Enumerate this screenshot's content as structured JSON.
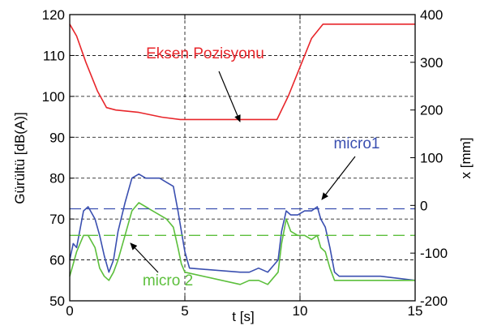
{
  "chart_data": {
    "type": "line",
    "xlabel": "t [s]",
    "ylabel_left": "Gürültü [dB(A)]",
    "ylabel_right": "x [mm]",
    "xlim": [
      0,
      15
    ],
    "ylim_left": [
      50,
      120
    ],
    "ylim_right": [
      -200,
      400
    ],
    "x_ticks": [
      "0",
      "5",
      "10",
      "15"
    ],
    "y_ticks_left": [
      "50",
      "60",
      "70",
      "80",
      "90",
      "100",
      "110",
      "120"
    ],
    "y_ticks_right": [
      "-200",
      "-100",
      "0",
      "100",
      "200",
      "300",
      "400"
    ],
    "grid": true,
    "colors": {
      "position": "#e8262b",
      "micro1": "#3a4fb0",
      "micro2": "#5cbf3c"
    },
    "annotations": {
      "position": "Eksen Pozisyonu",
      "micro1": "micro1",
      "micro2": "micro 2"
    },
    "series": [
      {
        "name": "Eksen Pozisyonu",
        "axis": "right",
        "x": [
          0,
          0.3,
          0.7,
          1.2,
          1.6,
          2.0,
          3.0,
          4.0,
          4.8,
          5.5,
          6.5,
          7.5,
          8.5,
          9.0,
          9.5,
          10.0,
          10.5,
          11.0,
          15.0
        ],
        "y": [
          380,
          355,
          300,
          240,
          205,
          200,
          195,
          185,
          180,
          180,
          180,
          180,
          180,
          180,
          230,
          290,
          350,
          380,
          380
        ]
      },
      {
        "name": "micro1",
        "axis": "left",
        "x": [
          0,
          0.15,
          0.3,
          0.6,
          0.8,
          1.1,
          1.3,
          1.5,
          1.7,
          1.9,
          2.1,
          2.4,
          2.7,
          3.0,
          3.3,
          3.6,
          3.9,
          4.2,
          4.5,
          4.7,
          4.85,
          5.0,
          5.2,
          7.4,
          7.8,
          8.2,
          8.6,
          8.9,
          9.05,
          9.2,
          9.4,
          9.6,
          9.9,
          10.2,
          10.5,
          10.75,
          10.9,
          11.1,
          11.3,
          11.5,
          11.7,
          12.0,
          12.5,
          13.5,
          15.0
        ],
        "y": [
          60,
          64,
          63,
          72,
          73,
          70,
          66,
          61,
          57,
          60,
          67,
          74,
          80,
          81,
          80,
          80,
          80,
          79,
          78,
          72,
          67,
          62,
          58,
          57,
          57,
          58,
          57,
          59,
          60,
          67,
          72,
          71,
          71,
          72,
          72,
          73,
          70,
          68,
          63,
          57,
          56,
          56,
          56,
          56,
          55
        ]
      },
      {
        "name": "micro 2",
        "axis": "left",
        "x": [
          0,
          0.15,
          0.3,
          0.6,
          0.8,
          1.1,
          1.3,
          1.5,
          1.7,
          1.9,
          2.1,
          2.4,
          2.7,
          3.0,
          3.3,
          3.6,
          3.9,
          4.2,
          4.5,
          4.7,
          4.85,
          5.0,
          7.4,
          7.8,
          8.2,
          8.6,
          8.9,
          9.05,
          9.2,
          9.4,
          9.6,
          9.9,
          10.2,
          10.5,
          10.75,
          10.9,
          11.1,
          11.3,
          11.5,
          11.7,
          12.0,
          12.5,
          13.5,
          15.0
        ],
        "y": [
          56,
          59,
          62,
          66,
          66,
          63,
          58,
          56,
          55,
          57,
          60,
          66,
          72,
          74,
          73,
          72,
          71,
          70,
          68,
          63,
          59,
          57,
          54,
          55,
          55,
          54,
          56,
          57,
          64,
          70,
          67,
          66,
          66,
          65,
          66,
          63,
          62,
          58,
          55,
          55,
          55,
          55,
          55,
          55
        ]
      },
      {
        "name": "micro1 level",
        "axis": "left",
        "style": "dashed",
        "x": [
          0,
          15
        ],
        "y": [
          72.5,
          72.5
        ]
      },
      {
        "name": "micro 2 level",
        "axis": "left",
        "style": "dashed",
        "x": [
          0,
          15
        ],
        "y": [
          66,
          66
        ]
      }
    ]
  }
}
